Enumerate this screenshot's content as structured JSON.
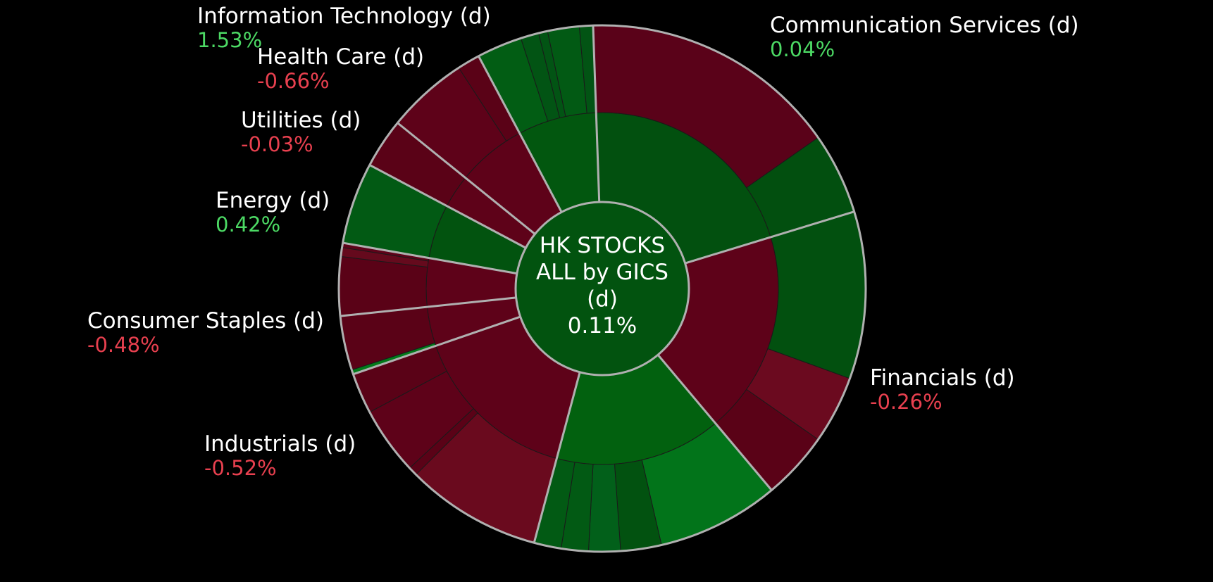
{
  "chart_data": {
    "type": "sunburst",
    "center": {
      "title_lines": [
        "HK STOCKS",
        "ALL by GICS",
        "(d)"
      ],
      "change": "0.11%"
    },
    "colors": {
      "positive_text": "#4cd964",
      "negative_text": "#e8404f",
      "ring_stroke": "#b0b0b0"
    },
    "sectors": [
      {
        "id": "financials",
        "name": "Financials (d)",
        "change": -0.26
      },
      {
        "id": "consumer-discretionary",
        "name": "",
        "change": null
      },
      {
        "id": "industrials",
        "name": "Industrials (d)",
        "change": -0.52
      },
      {
        "id": "consumer-staples",
        "name": "Consumer Staples (d)",
        "change": -0.48
      },
      {
        "id": "energy",
        "name": "Energy (d)",
        "change": 0.42
      },
      {
        "id": "utilities",
        "name": "Utilities (d)",
        "change": -0.03
      },
      {
        "id": "health-care",
        "name": "Health Care (d)",
        "change": -0.66
      },
      {
        "id": "information-technology",
        "name": "Information Technology (d)",
        "change": 1.53
      },
      {
        "id": "communication-services",
        "name": "Communication Services (d)",
        "change": 0.04
      }
    ],
    "labels": {
      "financials": {
        "name": "Financials (d)",
        "change": "-0.26%",
        "sign": "neg"
      },
      "industrials": {
        "name": "Industrials (d)",
        "change": "-0.52%",
        "sign": "neg"
      },
      "consumer_staples": {
        "name": "Consumer Staples (d)",
        "change": "-0.48%",
        "sign": "neg"
      },
      "energy": {
        "name": "Energy (d)",
        "change": "0.42%",
        "sign": "pos"
      },
      "utilities": {
        "name": "Utilities (d)",
        "change": "-0.03%",
        "sign": "neg"
      },
      "health_care": {
        "name": "Health Care (d)",
        "change": "-0.66%",
        "sign": "neg"
      },
      "information_technology": {
        "name": "Information Technology (d)",
        "change": "1.53%",
        "sign": "pos"
      },
      "communication_services": {
        "name": "Communication Services (d)",
        "change": "0.04%",
        "sign": "pos"
      }
    }
  }
}
